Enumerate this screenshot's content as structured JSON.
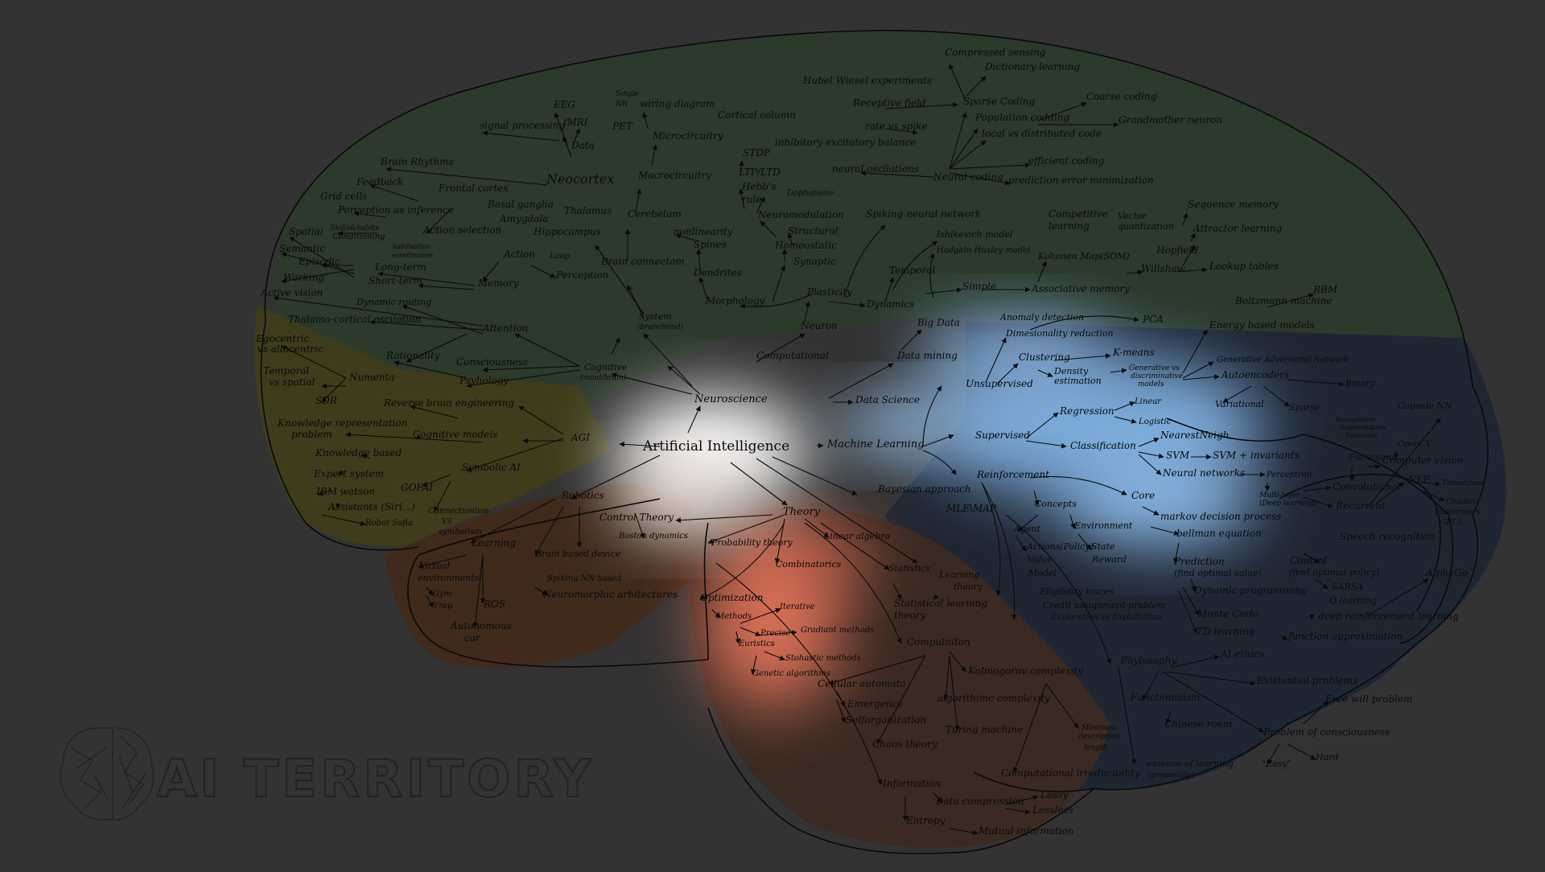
{
  "logo": {
    "text": "AI TERRITORY",
    "accent": "#1f1f1f"
  },
  "colors": {
    "background": "#333333",
    "neuro": "#2a3b2a",
    "ai_symbolic": "#4a4a1f",
    "robotics": "#4a2a1f",
    "ml": "#7fb0e0",
    "theory": "#e0735a",
    "rl": "#1f2a3a",
    "center": "#ffffff"
  },
  "center": {
    "label": "Artificial Intelligence"
  },
  "labels": [
    {
      "id": "neuroscience",
      "text": "Neuroscience"
    },
    {
      "id": "machine-learning",
      "text": "Machine Learning"
    },
    {
      "id": "data-science",
      "text": "Data Science"
    },
    {
      "id": "data-mining",
      "text": "Data mining"
    },
    {
      "id": "big-data",
      "text": "Big Data"
    },
    {
      "id": "theory",
      "text": "Theory"
    },
    {
      "id": "agi",
      "text": "AGI"
    },
    {
      "id": "robotics",
      "text": "Robotics"
    },
    {
      "id": "bayesian",
      "text": "Bayesian approach"
    },
    {
      "id": "mle",
      "text": "MLE\\MAP"
    },
    {
      "id": "unsupervised",
      "text": "Unsupervised"
    },
    {
      "id": "supervised",
      "text": "Supervised"
    },
    {
      "id": "reinforcement",
      "text": "Reinforcement"
    },
    {
      "id": "anomaly",
      "text": "Anomaly detection"
    },
    {
      "id": "dimred",
      "text": "Dimesionality reduction"
    },
    {
      "id": "pca",
      "text": "PCA"
    },
    {
      "id": "clustering",
      "text": "Clustering"
    },
    {
      "id": "kmeans",
      "text": "K-means"
    },
    {
      "id": "density",
      "text": "Density"
    },
    {
      "id": "estimation",
      "text": "estimation"
    },
    {
      "id": "genvsdisc1",
      "text": "Generative vs"
    },
    {
      "id": "genvsdisc2",
      "text": "discriminative"
    },
    {
      "id": "genvsdisc3",
      "text": "models"
    },
    {
      "id": "energy",
      "text": "Energy based models"
    },
    {
      "id": "gan",
      "text": "Generative Adversarial Network"
    },
    {
      "id": "autoencoders",
      "text": "Autoencoders"
    },
    {
      "id": "binary",
      "text": "Binary"
    },
    {
      "id": "variational",
      "text": "Variational"
    },
    {
      "id": "sparse",
      "text": "Sparse"
    },
    {
      "id": "boltzmann",
      "text": "Boltzmann machine"
    },
    {
      "id": "rbm",
      "text": "RBM"
    },
    {
      "id": "regression",
      "text": "Regression"
    },
    {
      "id": "linear",
      "text": "Linear"
    },
    {
      "id": "logistic",
      "text": "Logistic"
    },
    {
      "id": "classification",
      "text": "Classification"
    },
    {
      "id": "nn",
      "text": "NearestNeigh"
    },
    {
      "id": "svm",
      "text": "SVM"
    },
    {
      "id": "svminv",
      "text": "SVM + invariants"
    },
    {
      "id": "neuralnets",
      "text": "Neural networks"
    },
    {
      "id": "perceptron",
      "text": "Perceptron"
    },
    {
      "id": "multilayer",
      "text": "Multi-layer"
    },
    {
      "id": "deeplearning",
      "text": "(Deep learning)"
    },
    {
      "id": "convolutional",
      "text": "Convolutional"
    },
    {
      "id": "recurrent",
      "text": "Recurrent"
    },
    {
      "id": "fucussima",
      "text": "Fucussima"
    },
    {
      "id": "computervision",
      "text": "Computer vision"
    },
    {
      "id": "capsule",
      "text": "Capsule NN"
    },
    {
      "id": "recognition",
      "text": "Recognition"
    },
    {
      "id": "segmentation",
      "text": "Segmentation"
    },
    {
      "id": "detection",
      "text": "Detection"
    },
    {
      "id": "opencv",
      "text": "OpenCV"
    },
    {
      "id": "nlp",
      "text": "NLP"
    },
    {
      "id": "translation",
      "text": "Translation"
    },
    {
      "id": "chatbots",
      "text": "ChatBots"
    },
    {
      "id": "transformers",
      "text": "Tranformers"
    },
    {
      "id": "gpt3",
      "text": "GPT-3"
    },
    {
      "id": "speech",
      "text": "Speech recognition"
    },
    {
      "id": "core",
      "text": "Core"
    },
    {
      "id": "mdp",
      "text": "markov decision process"
    },
    {
      "id": "bellman",
      "text": "bellman equation"
    },
    {
      "id": "prediction",
      "text": "Prediction"
    },
    {
      "id": "findvalue",
      "text": "(find optimal value)"
    },
    {
      "id": "control",
      "text": "Control"
    },
    {
      "id": "findpolicy",
      "text": "(find optimal policy)"
    },
    {
      "id": "sarsa",
      "text": "SARSA"
    },
    {
      "id": "qlearning",
      "text": "Q learning"
    },
    {
      "id": "dynprog",
      "text": "Dynamic programming"
    },
    {
      "id": "montecarlo",
      "text": "Monte Carlo"
    },
    {
      "id": "td",
      "text": "TD learning"
    },
    {
      "id": "deeprl",
      "text": "deep reinforcement learning"
    },
    {
      "id": "funcapprox",
      "text": "function approximation"
    },
    {
      "id": "alphago",
      "text": "AlphaGo"
    },
    {
      "id": "concepts",
      "text": "Concepts"
    },
    {
      "id": "agent",
      "text": "Agent"
    },
    {
      "id": "environment",
      "text": "Environment"
    },
    {
      "id": "actions",
      "text": "Actions(Policy)"
    },
    {
      "id": "value",
      "text": "Value"
    },
    {
      "id": "model",
      "text": "Model"
    },
    {
      "id": "state",
      "text": "State"
    },
    {
      "id": "reward",
      "text": "Reward"
    },
    {
      "id": "eligibility",
      "text": "Eligibility traces"
    },
    {
      "id": "credit",
      "text": "Credit assignment problem"
    },
    {
      "id": "explore",
      "text": "Exploration vs Exploitation"
    },
    {
      "id": "phylosophy",
      "text": "Phylosophy"
    },
    {
      "id": "aiethics",
      "text": "AI ethics"
    },
    {
      "id": "existential",
      "text": "Existential problems"
    },
    {
      "id": "functionalism",
      "text": "Functionalism"
    },
    {
      "id": "chinese",
      "text": "Chinese room"
    },
    {
      "id": "freewill",
      "text": "Free will problem"
    },
    {
      "id": "consciousnessprob",
      "text": "Problem of consciousness"
    },
    {
      "id": "easy",
      "text": "\"Easy\""
    },
    {
      "id": "hard",
      "text": "Hard"
    },
    {
      "id": "essense",
      "text": "essense of learning"
    },
    {
      "id": "gnoseology",
      "text": "(gnoseology)"
    },
    {
      "id": "probability",
      "text": "Probability theory"
    },
    {
      "id": "combinatorics",
      "text": "Combinatorics"
    },
    {
      "id": "linalg",
      "text": "Linear algebra"
    },
    {
      "id": "statistics",
      "text": "Statistics"
    },
    {
      "id": "learningtheory1",
      "text": "Learning"
    },
    {
      "id": "learningtheory2",
      "text": "theory"
    },
    {
      "id": "statlearn1",
      "text": "Statistical learning"
    },
    {
      "id": "statlearn2",
      "text": "theory"
    },
    {
      "id": "optimization",
      "text": "Optimization"
    },
    {
      "id": "methods",
      "text": "Methods"
    },
    {
      "id": "iterative",
      "text": "Iterative"
    },
    {
      "id": "precise",
      "text": "Precise"
    },
    {
      "id": "gradient",
      "text": "Gradiant methods"
    },
    {
      "id": "euristics",
      "text": "Euristics"
    },
    {
      "id": "stohastic",
      "text": "Stohastic methods"
    },
    {
      "id": "genetic",
      "text": "Genetic algorithms"
    },
    {
      "id": "computation",
      "text": "Computaiton"
    },
    {
      "id": "kolmogorov",
      "text": "Kolmogorov complexity"
    },
    {
      "id": "cellular",
      "text": "Cellular automata"
    },
    {
      "id": "emergence",
      "text": "Emergence"
    },
    {
      "id": "selforg",
      "text": "Selforganization"
    },
    {
      "id": "algcomplex",
      "text": "algorithimc complexity"
    },
    {
      "id": "turing",
      "text": "Turing machine"
    },
    {
      "id": "chaos",
      "text": "Chaos theory"
    },
    {
      "id": "mindesc1",
      "text": "Minimum"
    },
    {
      "id": "mindesc2",
      "text": "description"
    },
    {
      "id": "mindesc3",
      "text": "length"
    },
    {
      "id": "irreducible",
      "text": "Computational irreducibility"
    },
    {
      "id": "information",
      "text": "Information"
    },
    {
      "id": "datacomp",
      "text": "Data compression"
    },
    {
      "id": "lossy",
      "text": "Lossy"
    },
    {
      "id": "lossless",
      "text": "Lossless"
    },
    {
      "id": "entropy",
      "text": "Entropy"
    },
    {
      "id": "mutualinfo",
      "text": "Mutual information"
    },
    {
      "id": "controltheory",
      "text": "Control Theory"
    },
    {
      "id": "boston",
      "text": "Boston dynamics"
    },
    {
      "id": "brainbased",
      "text": "Brain based device"
    },
    {
      "id": "spikingnn",
      "text": "Spiking NN based"
    },
    {
      "id": "neuromorphic",
      "text": "Neuromorphic arhitectures"
    },
    {
      "id": "learning",
      "text": "Learning"
    },
    {
      "id": "virtual1",
      "text": "Virtual"
    },
    {
      "id": "virtual2",
      "text": "environments"
    },
    {
      "id": "gym",
      "text": "Gym"
    },
    {
      "id": "vrep",
      "text": "Vrep"
    },
    {
      "id": "ros",
      "text": "ROS"
    },
    {
      "id": "autonomous1",
      "text": "Autonomous"
    },
    {
      "id": "autonomous2",
      "text": "car"
    },
    {
      "id": "connectionism",
      "text": "Connectionism"
    },
    {
      "id": "vs",
      "text": "VS"
    },
    {
      "id": "symbolism",
      "text": "symbolism"
    },
    {
      "id": "symbolicai",
      "text": "Symbolic AI"
    },
    {
      "id": "gofai",
      "text": "GOFAI"
    },
    {
      "id": "knowledgebased",
      "text": "Knowledge based"
    },
    {
      "id": "expert",
      "text": "Expert system"
    },
    {
      "id": "ibm",
      "text": "IBM watson"
    },
    {
      "id": "assistants",
      "text": "Assistants (Siri...)"
    },
    {
      "id": "sofia",
      "text": "Robot Sofia"
    },
    {
      "id": "knowrep1",
      "text": "Knowledge representation"
    },
    {
      "id": "knowrep2",
      "text": "problem"
    },
    {
      "id": "cognitivemodels",
      "text": "Cognitive models"
    },
    {
      "id": "reverse",
      "text": "Reverse brain engineering"
    },
    {
      "id": "egocentric1",
      "text": "Egocentric"
    },
    {
      "id": "egocentric2",
      "text": "vs allocentric"
    },
    {
      "id": "temporalspatial1",
      "text": "Temporal"
    },
    {
      "id": "temporalspatial2",
      "text": "vs spatial"
    },
    {
      "id": "numenta",
      "text": "Numenta"
    },
    {
      "id": "sdr",
      "text": "SDR"
    },
    {
      "id": "rationality",
      "text": "Rationality"
    },
    {
      "id": "consciousness",
      "text": "Consciousness"
    },
    {
      "id": "psyhology",
      "text": "Psyhology"
    },
    {
      "id": "cognitive",
      "text": "Cognitive"
    },
    {
      "id": "mindbrain",
      "text": "(mind/brain)"
    },
    {
      "id": "system",
      "text": "System"
    },
    {
      "id": "brainmind",
      "text": "(brain/mind)"
    },
    {
      "id": "computational",
      "text": "Computational"
    },
    {
      "id": "neuron",
      "text": "Neuron"
    },
    {
      "id": "plasticity",
      "text": "Plasticity"
    },
    {
      "id": "dynamics",
      "text": "Dynamics"
    },
    {
      "id": "morphology",
      "text": "Morphology"
    },
    {
      "id": "dendrites",
      "text": "Dendrites"
    },
    {
      "id": "spines",
      "text": "Spines"
    },
    {
      "id": "nonlinearity",
      "text": "nonlinearity"
    },
    {
      "id": "synaptic",
      "text": "Synaptic"
    },
    {
      "id": "homeostatic",
      "text": "Homeostatic"
    },
    {
      "id": "structural",
      "text": "Structural"
    },
    {
      "id": "neuromodulation",
      "text": "Neuromodulation"
    },
    {
      "id": "dophamine",
      "text": "Dophamine"
    },
    {
      "id": "hebbs1",
      "text": "Hebb's"
    },
    {
      "id": "hebbs2",
      "text": "rule"
    },
    {
      "id": "ltp",
      "text": "LTP/LTD"
    },
    {
      "id": "stdp",
      "text": "STDP"
    },
    {
      "id": "temporal",
      "text": "Temporal"
    },
    {
      "id": "simple",
      "text": "Simple"
    },
    {
      "id": "spikingnet",
      "text": "Spiking neural network"
    },
    {
      "id": "izhikevich",
      "text": "Ishikevich model"
    },
    {
      "id": "hodgkin",
      "text": "Hodgkin-Huxley model"
    },
    {
      "id": "neuraloscill",
      "text": "neural oscilations"
    },
    {
      "id": "neuralcoding",
      "text": "Neural coding"
    },
    {
      "id": "inhibitory",
      "text": "inhibitory excitatory balance"
    },
    {
      "id": "rate",
      "text": "rate vs spike"
    },
    {
      "id": "receptive",
      "text": "Receptive field"
    },
    {
      "id": "hubel",
      "text": "Hubel Wiesel experiments"
    },
    {
      "id": "sparsecoding",
      "text": "Sparse Coding"
    },
    {
      "id": "compressed",
      "text": "Compressed sensing"
    },
    {
      "id": "dictionary",
      "text": "Dictionary learning"
    },
    {
      "id": "population",
      "text": "Population codding"
    },
    {
      "id": "localdist",
      "text": "local vs distributed code"
    },
    {
      "id": "coarse",
      "text": "Coarse coding"
    },
    {
      "id": "grandmother",
      "text": "Grandmother neuron"
    },
    {
      "id": "efficient",
      "text": "efficient coding"
    },
    {
      "id": "predictionerr",
      "text": "prediction error minimization"
    },
    {
      "id": "associative",
      "text": "Associative memory"
    },
    {
      "id": "kohonen",
      "text": "Kohonen Map(SOM)"
    },
    {
      "id": "competitive1",
      "text": "Competitive"
    },
    {
      "id": "competitive2",
      "text": "learning"
    },
    {
      "id": "vector1",
      "text": "Vector"
    },
    {
      "id": "vector2",
      "text": "quantization"
    },
    {
      "id": "hopfield",
      "text": "Hopfield"
    },
    {
      "id": "willshaw",
      "text": "Willshaw"
    },
    {
      "id": "lookup",
      "text": "Lookup tables"
    },
    {
      "id": "attractor",
      "text": "Attractor learning"
    },
    {
      "id": "sequence",
      "text": "Sequence memory"
    },
    {
      "id": "braincon",
      "text": "Brain connectom"
    },
    {
      "id": "cerebelum",
      "text": "Cerebelum"
    },
    {
      "id": "macrocircuitry",
      "text": "Macrocircuitry"
    },
    {
      "id": "microcircuitry",
      "text": "Microcircuitry"
    },
    {
      "id": "wiring",
      "text": "wiring diagram"
    },
    {
      "id": "cortical",
      "text": "Cortical column"
    },
    {
      "id": "neocortex",
      "text": "Neocortex"
    },
    {
      "id": "thalamus",
      "text": "Thalamus"
    },
    {
      "id": "hippocampus",
      "text": "Hippocampus"
    },
    {
      "id": "amygdala",
      "text": "Amygdala"
    },
    {
      "id": "basal",
      "text": "Basal ganglia"
    },
    {
      "id": "frontal",
      "text": "Frontal cortex"
    },
    {
      "id": "data",
      "text": "Data"
    },
    {
      "id": "eeg",
      "text": "EEG"
    },
    {
      "id": "fmri",
      "text": "fMRI"
    },
    {
      "id": "pet",
      "text": "PET"
    },
    {
      "id": "single1",
      "text": "Single"
    },
    {
      "id": "single2",
      "text": "NR"
    },
    {
      "id": "signal",
      "text": "signal processing"
    },
    {
      "id": "brainrhythms",
      "text": "Brain Rhythms"
    },
    {
      "id": "feedback",
      "text": "Feedback"
    },
    {
      "id": "gridcells",
      "text": "Grid cells"
    },
    {
      "id": "perceptioninf",
      "text": "Perception as inference"
    },
    {
      "id": "actionsel",
      "text": "Action selection"
    },
    {
      "id": "action",
      "text": "Action"
    },
    {
      "id": "loop",
      "text": "Loop"
    },
    {
      "id": "perception",
      "text": "Perception"
    },
    {
      "id": "memory",
      "text": "Memory"
    },
    {
      "id": "attention",
      "text": "Attention"
    },
    {
      "id": "thalamocort",
      "text": "Thalamo-cortical oscilation"
    },
    {
      "id": "dynrouting",
      "text": "Dynamic routing"
    },
    {
      "id": "activevision",
      "text": "Active vision"
    },
    {
      "id": "working",
      "text": "Working"
    },
    {
      "id": "shortterm",
      "text": "Short-term"
    },
    {
      "id": "longterm",
      "text": "Long-term"
    },
    {
      "id": "episodic",
      "text": "Episodic"
    },
    {
      "id": "semantic",
      "text": "Semantic"
    },
    {
      "id": "spatial",
      "text": "Spatial"
    },
    {
      "id": "skills",
      "text": "Skills&habits"
    },
    {
      "id": "conditioning",
      "text": "Conditioning"
    },
    {
      "id": "habituation1",
      "text": "habituation"
    },
    {
      "id": "habituation2",
      "text": "sensitization"
    }
  ]
}
